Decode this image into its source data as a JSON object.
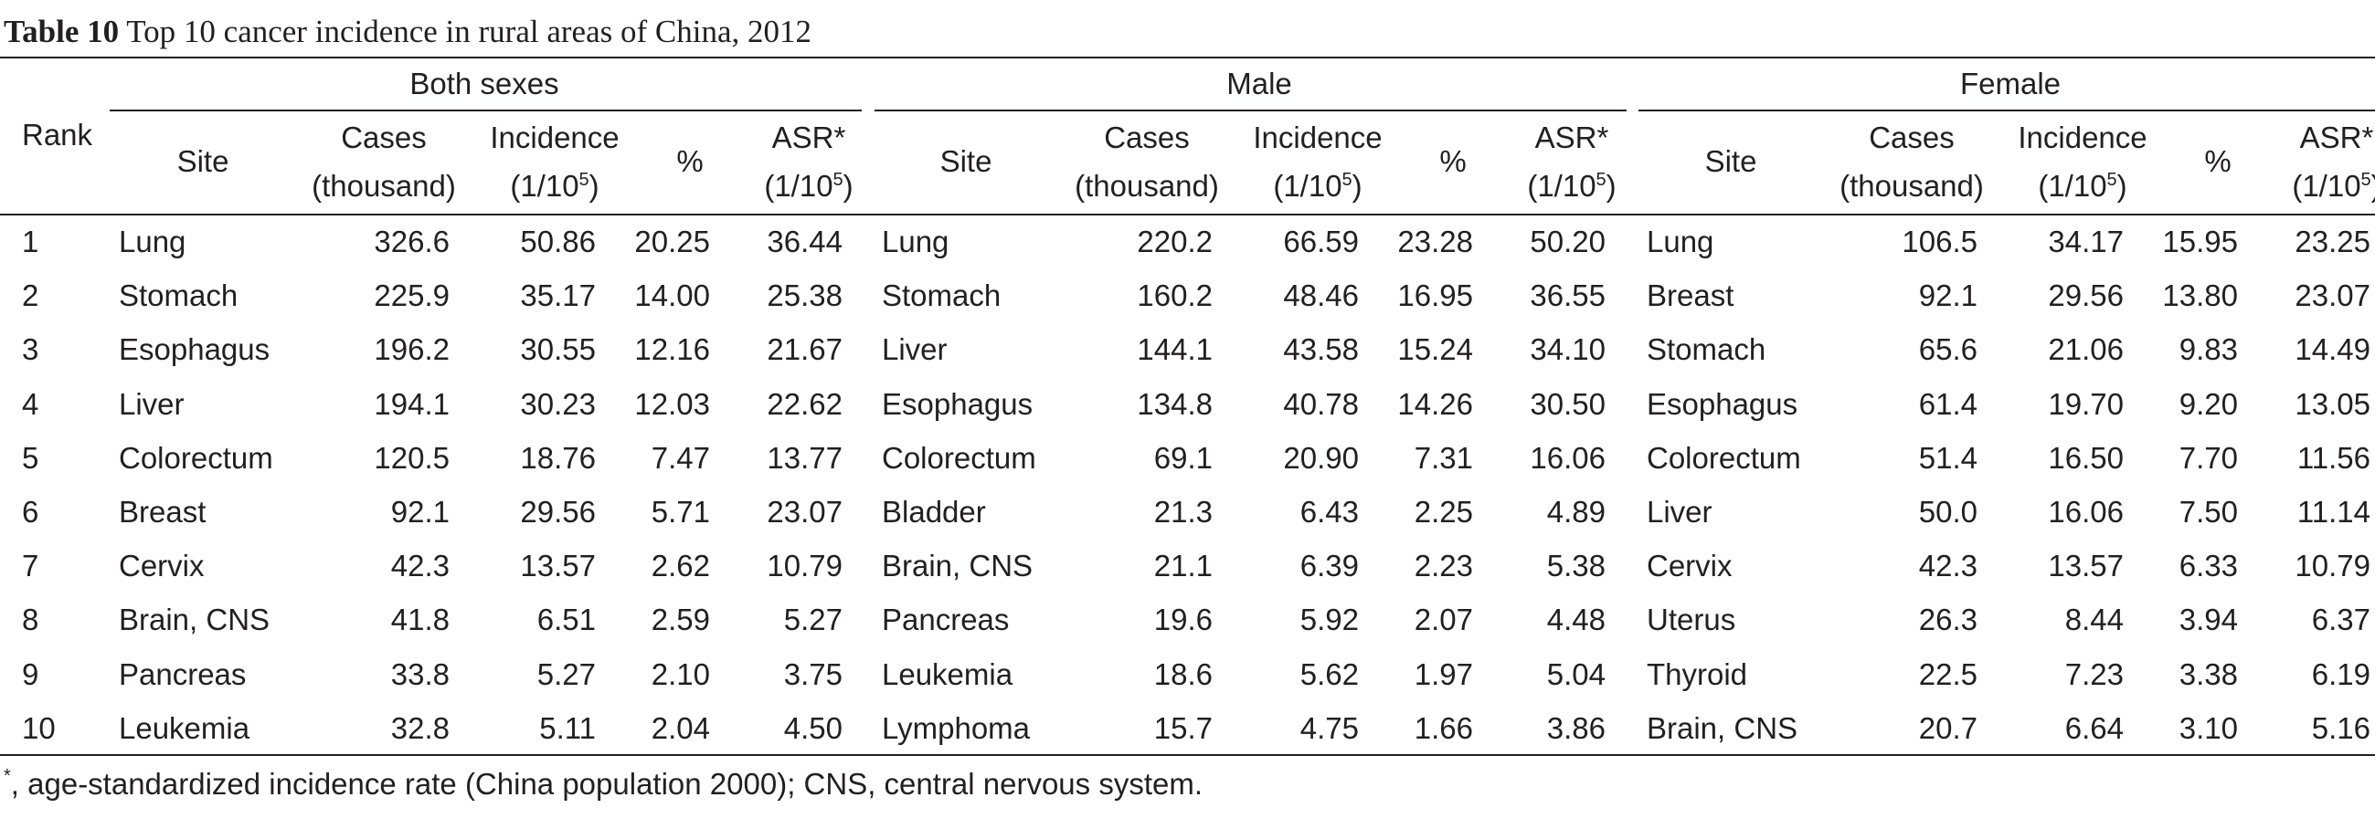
{
  "caption": {
    "label": "Table 10",
    "title": "Top 10 cancer incidence in rural areas of China, 2012"
  },
  "header": {
    "rank": "Rank",
    "groups": [
      "Both sexes",
      "Male",
      "Female"
    ],
    "columns": {
      "site": "Site",
      "cases_line1": "Cases",
      "cases_line2": "(thousand)",
      "incidence_line1": "Incidence",
      "incidence_line2_pre": "(1/10",
      "incidence_line2_sup": "5",
      "incidence_line2_post": ")",
      "percent": "%",
      "asr_line1": "ASR*",
      "asr_line2_pre": "(1/10",
      "asr_line2_sup": "5",
      "asr_line2_post": ")"
    }
  },
  "rows": [
    {
      "rank": "1",
      "groups": [
        [
          "Lung",
          "326.6",
          "50.86",
          "20.25",
          "36.44"
        ],
        [
          "Lung",
          "220.2",
          "66.59",
          "23.28",
          "50.20"
        ],
        [
          "Lung",
          "106.5",
          "34.17",
          "15.95",
          "23.25"
        ]
      ]
    },
    {
      "rank": "2",
      "groups": [
        [
          "Stomach",
          "225.9",
          "35.17",
          "14.00",
          "25.38"
        ],
        [
          "Stomach",
          "160.2",
          "48.46",
          "16.95",
          "36.55"
        ],
        [
          "Breast",
          "92.1",
          "29.56",
          "13.80",
          "23.07"
        ]
      ]
    },
    {
      "rank": "3",
      "groups": [
        [
          "Esophagus",
          "196.2",
          "30.55",
          "12.16",
          "21.67"
        ],
        [
          "Liver",
          "144.1",
          "43.58",
          "15.24",
          "34.10"
        ],
        [
          "Stomach",
          "65.6",
          "21.06",
          "9.83",
          "14.49"
        ]
      ]
    },
    {
      "rank": "4",
      "groups": [
        [
          "Liver",
          "194.1",
          "30.23",
          "12.03",
          "22.62"
        ],
        [
          "Esophagus",
          "134.8",
          "40.78",
          "14.26",
          "30.50"
        ],
        [
          "Esophagus",
          "61.4",
          "19.70",
          "9.20",
          "13.05"
        ]
      ]
    },
    {
      "rank": "5",
      "groups": [
        [
          "Colorectum",
          "120.5",
          "18.76",
          "7.47",
          "13.77"
        ],
        [
          "Colorectum",
          "69.1",
          "20.90",
          "7.31",
          "16.06"
        ],
        [
          "Colorectum",
          "51.4",
          "16.50",
          "7.70",
          "11.56"
        ]
      ]
    },
    {
      "rank": "6",
      "groups": [
        [
          "Breast",
          "92.1",
          "29.56",
          "5.71",
          "23.07"
        ],
        [
          "Bladder",
          "21.3",
          "6.43",
          "2.25",
          "4.89"
        ],
        [
          "Liver",
          "50.0",
          "16.06",
          "7.50",
          "11.14"
        ]
      ]
    },
    {
      "rank": "7",
      "groups": [
        [
          "Cervix",
          "42.3",
          "13.57",
          "2.62",
          "10.79"
        ],
        [
          "Brain, CNS",
          "21.1",
          "6.39",
          "2.23",
          "5.38"
        ],
        [
          "Cervix",
          "42.3",
          "13.57",
          "6.33",
          "10.79"
        ]
      ]
    },
    {
      "rank": "8",
      "groups": [
        [
          "Brain, CNS",
          "41.8",
          "6.51",
          "2.59",
          "5.27"
        ],
        [
          "Pancreas",
          "19.6",
          "5.92",
          "2.07",
          "4.48"
        ],
        [
          "Uterus",
          "26.3",
          "8.44",
          "3.94",
          "6.37"
        ]
      ]
    },
    {
      "rank": "9",
      "groups": [
        [
          "Pancreas",
          "33.8",
          "5.27",
          "2.10",
          "3.75"
        ],
        [
          "Leukemia",
          "18.6",
          "5.62",
          "1.97",
          "5.04"
        ],
        [
          "Thyroid",
          "22.5",
          "7.23",
          "3.38",
          "6.19"
        ]
      ]
    },
    {
      "rank": "10",
      "groups": [
        [
          "Leukemia",
          "32.8",
          "5.11",
          "2.04",
          "4.50"
        ],
        [
          "Lymphoma",
          "15.7",
          "4.75",
          "1.66",
          "3.86"
        ],
        [
          "Brain, CNS",
          "20.7",
          "6.64",
          "3.10",
          "5.16"
        ]
      ]
    }
  ],
  "footnote": {
    "mark": "*",
    "text": ", age-standardized incidence rate (China population 2000); CNS, central nervous system."
  }
}
